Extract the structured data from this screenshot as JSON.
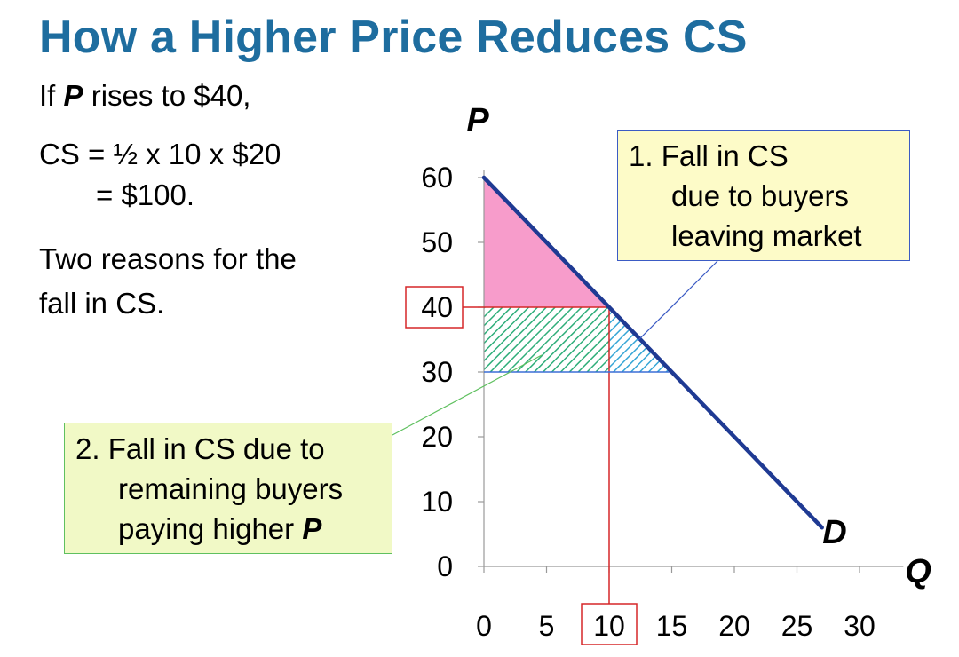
{
  "title": "How a Higher Price Reduces CS",
  "text": {
    "line1_pre": "If ",
    "line1_var": "P",
    "line1_post": " rises to $40,",
    "line2": "CS = ½ x 10 x $20",
    "line3": "= $100.",
    "line4": "Two reasons for the",
    "line5": "fall in CS."
  },
  "callouts": {
    "one": {
      "num": "1.",
      "line1": "Fall in CS",
      "line2": "due to buyers",
      "line3": "leaving market"
    },
    "two": {
      "num": "2.",
      "line1": "Fall in CS due to",
      "line2": "remaining buyers",
      "line3_pre": "paying higher ",
      "line3_var": "P"
    }
  },
  "colors": {
    "title": "#1e6d9f",
    "demand": "#1f3a93",
    "new_cs_fill": "#f79ccb",
    "remaining_buyers_hatch": "#2fae7a",
    "leaving_buyers_hatch": "#36a6d6",
    "highlight": "#d62728"
  },
  "chart_data": {
    "type": "line",
    "xlabel": "Q",
    "ylabel": "P",
    "xlim": [
      0,
      30
    ],
    "ylim": [
      0,
      60
    ],
    "x_ticks": [
      0,
      5,
      10,
      15,
      20,
      25,
      30
    ],
    "y_ticks": [
      0,
      10,
      20,
      30,
      40,
      50,
      60
    ],
    "grid": false,
    "series": [
      {
        "name": "D",
        "x": [
          0,
          27
        ],
        "y": [
          60,
          6
        ]
      }
    ],
    "areas": [
      {
        "shape": "triangle",
        "points": [
          [
            0,
            60
          ],
          [
            0,
            40
          ],
          [
            10,
            40
          ]
        ],
        "style": "solid"
      },
      {
        "shape": "rectangle",
        "points": [
          [
            0,
            40
          ],
          [
            10,
            40
          ],
          [
            10,
            30
          ],
          [
            0,
            30
          ]
        ],
        "style": "hatched"
      },
      {
        "shape": "triangle",
        "points": [
          [
            10,
            40
          ],
          [
            15,
            30
          ],
          [
            10,
            30
          ]
        ],
        "style": "hatched"
      }
    ],
    "reference_lines": [
      {
        "axis": "y",
        "value": 40,
        "x_to": 10
      },
      {
        "axis": "x",
        "value": 10,
        "y_to": 40
      },
      {
        "axis": "y",
        "value": 30,
        "x_to": 15
      }
    ],
    "highlighted_ticks": {
      "y": 40,
      "x": 10
    },
    "curve_label": "D"
  }
}
